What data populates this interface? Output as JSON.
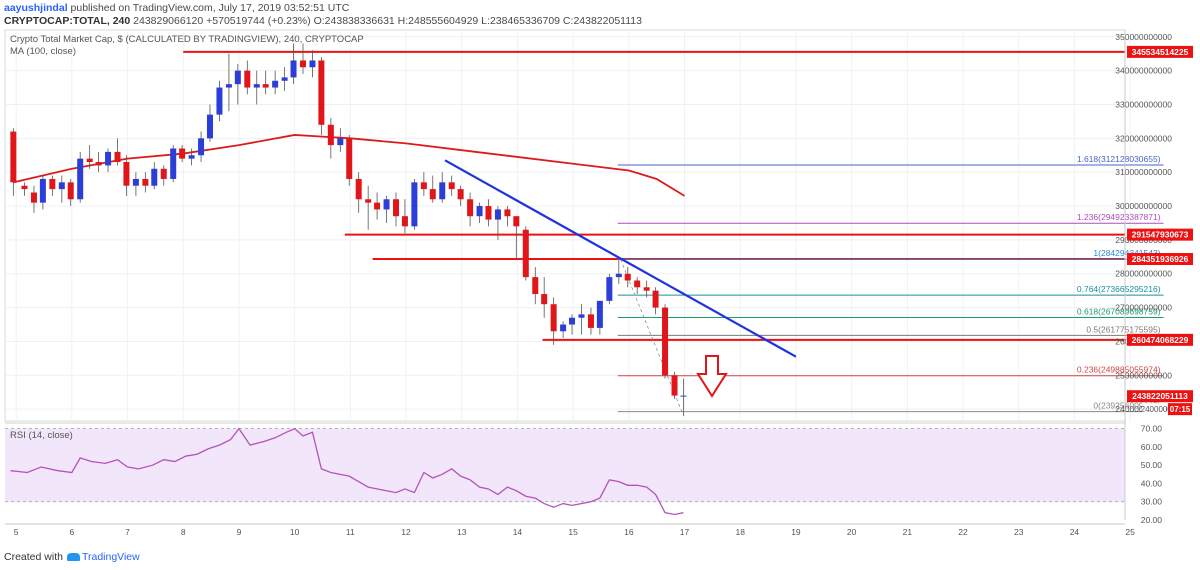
{
  "header": {
    "user": "aayushjindal",
    "published_text": "published on TradingView.com, July 17, 2019 03:52:51 UTC",
    "symbol_line": "CRYPTOCAP:TOTAL, 240",
    "price": "243829066120",
    "change": "+570519744 (+0.23%)",
    "ohlc": {
      "o": "243838336631",
      "h": "248555604929",
      "l": "238465336709",
      "c": "243822051113"
    }
  },
  "legend": {
    "main": "Crypto Total Market Cap, $ (CALCULATED BY TRADINGVIEW), 240, CRYPTOCAP",
    "ma": "MA (100, close)",
    "rsi": "RSI (14, close)"
  },
  "footer": {
    "created_with": "Created with",
    "brand": "TradingView"
  },
  "colors": {
    "up": "#2b3ed8",
    "down": "#e0161b",
    "ma": "#dd1b1b",
    "hline": "#ee1111",
    "trend": "#1d33e0",
    "rsi": "#b553bd",
    "rsi_band": "#f1e6fa",
    "arrow": "#e0161b"
  },
  "chart_data": [
    {
      "type": "candlestick",
      "title": "Crypto Total Market Cap, $ (CALCULATED BY TRADINGVIEW), 240, CRYPTOCAP",
      "x_ticks": [
        "5",
        "6",
        "7",
        "8",
        "9",
        "10",
        "11",
        "12",
        "13",
        "14",
        "15",
        "16",
        "17",
        "18",
        "19",
        "20",
        "21",
        "22",
        "23",
        "24",
        "25"
      ],
      "x_tick_days": [
        5,
        6,
        7,
        8,
        9,
        10,
        11,
        12,
        13,
        14,
        15,
        16,
        17,
        18,
        19,
        20,
        21,
        22,
        23,
        24,
        25
      ],
      "y_ticks": [
        "240000000000",
        "250000000000",
        "260000000000",
        "270000000000",
        "280000000000",
        "290000000000",
        "300000000000",
        "310000000000",
        "320000000000",
        "330000000000",
        "340000000000",
        "350000000000"
      ],
      "ylim": [
        236500000000,
        352000000000
      ],
      "candles": [
        {
          "t": 4.95,
          "o": 322,
          "h": 323,
          "l": 303,
          "c": 307
        },
        {
          "t": 5.15,
          "o": 306,
          "h": 307,
          "l": 303,
          "c": 305
        },
        {
          "t": 5.32,
          "o": 304,
          "h": 306,
          "l": 298,
          "c": 301
        },
        {
          "t": 5.48,
          "o": 301,
          "h": 309,
          "l": 299,
          "c": 308
        },
        {
          "t": 5.65,
          "o": 308,
          "h": 309,
          "l": 303,
          "c": 305
        },
        {
          "t": 5.82,
          "o": 305,
          "h": 309,
          "l": 301,
          "c": 307
        },
        {
          "t": 5.98,
          "o": 307,
          "h": 308,
          "l": 300,
          "c": 302
        },
        {
          "t": 6.15,
          "o": 302,
          "h": 316,
          "l": 301,
          "c": 314
        },
        {
          "t": 6.32,
          "o": 314,
          "h": 318,
          "l": 311,
          "c": 313
        },
        {
          "t": 6.48,
          "o": 313,
          "h": 316,
          "l": 310,
          "c": 312
        },
        {
          "t": 6.65,
          "o": 312,
          "h": 317,
          "l": 310,
          "c": 316
        },
        {
          "t": 6.82,
          "o": 316,
          "h": 320,
          "l": 312,
          "c": 313
        },
        {
          "t": 6.98,
          "o": 313,
          "h": 315,
          "l": 303,
          "c": 306
        },
        {
          "t": 7.15,
          "o": 306,
          "h": 310,
          "l": 303,
          "c": 308
        },
        {
          "t": 7.32,
          "o": 308,
          "h": 310,
          "l": 304,
          "c": 306
        },
        {
          "t": 7.48,
          "o": 306,
          "h": 313,
          "l": 305,
          "c": 311
        },
        {
          "t": 7.65,
          "o": 311,
          "h": 312,
          "l": 306,
          "c": 308
        },
        {
          "t": 7.82,
          "o": 308,
          "h": 318,
          "l": 307,
          "c": 317
        },
        {
          "t": 7.98,
          "o": 317,
          "h": 318,
          "l": 313,
          "c": 314
        },
        {
          "t": 8.15,
          "o": 314,
          "h": 317,
          "l": 312,
          "c": 315
        },
        {
          "t": 8.32,
          "o": 315,
          "h": 322,
          "l": 313,
          "c": 320
        },
        {
          "t": 8.48,
          "o": 320,
          "h": 330,
          "l": 319,
          "c": 327
        },
        {
          "t": 8.65,
          "o": 327,
          "h": 337,
          "l": 325,
          "c": 335
        },
        {
          "t": 8.82,
          "o": 335,
          "h": 345,
          "l": 328,
          "c": 336
        },
        {
          "t": 8.98,
          "o": 336,
          "h": 342,
          "l": 330,
          "c": 340
        },
        {
          "t": 9.15,
          "o": 340,
          "h": 343,
          "l": 333,
          "c": 335
        },
        {
          "t": 9.32,
          "o": 335,
          "h": 340,
          "l": 330,
          "c": 336
        },
        {
          "t": 9.48,
          "o": 336,
          "h": 340,
          "l": 333,
          "c": 335
        },
        {
          "t": 9.65,
          "o": 335,
          "h": 340,
          "l": 333,
          "c": 337
        },
        {
          "t": 9.82,
          "o": 337,
          "h": 341,
          "l": 334,
          "c": 338
        },
        {
          "t": 9.98,
          "o": 338,
          "h": 348,
          "l": 336,
          "c": 343
        },
        {
          "t": 10.15,
          "o": 343,
          "h": 348,
          "l": 339,
          "c": 341
        },
        {
          "t": 10.32,
          "o": 341,
          "h": 346,
          "l": 338,
          "c": 343
        },
        {
          "t": 10.48,
          "o": 343,
          "h": 344,
          "l": 321,
          "c": 324
        },
        {
          "t": 10.65,
          "o": 324,
          "h": 326,
          "l": 314,
          "c": 318
        },
        {
          "t": 10.82,
          "o": 318,
          "h": 323,
          "l": 316,
          "c": 320
        },
        {
          "t": 10.98,
          "o": 320,
          "h": 321,
          "l": 306,
          "c": 308
        },
        {
          "t": 11.15,
          "o": 308,
          "h": 310,
          "l": 298,
          "c": 302
        },
        {
          "t": 11.32,
          "o": 302,
          "h": 306,
          "l": 293,
          "c": 301
        },
        {
          "t": 11.48,
          "o": 301,
          "h": 304,
          "l": 296,
          "c": 299
        },
        {
          "t": 11.65,
          "o": 299,
          "h": 303,
          "l": 295,
          "c": 302
        },
        {
          "t": 11.82,
          "o": 302,
          "h": 304,
          "l": 294,
          "c": 297
        },
        {
          "t": 11.98,
          "o": 297,
          "h": 302,
          "l": 292,
          "c": 294
        },
        {
          "t": 12.15,
          "o": 294,
          "h": 308,
          "l": 293,
          "c": 307
        },
        {
          "t": 12.32,
          "o": 307,
          "h": 310,
          "l": 303,
          "c": 305
        },
        {
          "t": 12.48,
          "o": 305,
          "h": 309,
          "l": 301,
          "c": 302
        },
        {
          "t": 12.65,
          "o": 302,
          "h": 310,
          "l": 301,
          "c": 307
        },
        {
          "t": 12.82,
          "o": 307,
          "h": 309,
          "l": 303,
          "c": 305
        },
        {
          "t": 12.98,
          "o": 305,
          "h": 306,
          "l": 300,
          "c": 302
        },
        {
          "t": 13.15,
          "o": 302,
          "h": 304,
          "l": 294,
          "c": 297
        },
        {
          "t": 13.32,
          "o": 297,
          "h": 301,
          "l": 295,
          "c": 300
        },
        {
          "t": 13.48,
          "o": 300,
          "h": 302,
          "l": 294,
          "c": 296
        },
        {
          "t": 13.65,
          "o": 296,
          "h": 300,
          "l": 290,
          "c": 299
        },
        {
          "t": 13.82,
          "o": 299,
          "h": 300,
          "l": 294,
          "c": 297
        },
        {
          "t": 13.98,
          "o": 297,
          "h": 297,
          "l": 284,
          "c": 294
        },
        {
          "t": 14.15,
          "o": 293,
          "h": 294,
          "l": 278,
          "c": 279
        },
        {
          "t": 14.32,
          "o": 279,
          "h": 282,
          "l": 271,
          "c": 274
        },
        {
          "t": 14.48,
          "o": 274,
          "h": 279,
          "l": 267,
          "c": 271
        },
        {
          "t": 14.65,
          "o": 271,
          "h": 273,
          "l": 259,
          "c": 263
        },
        {
          "t": 14.82,
          "o": 263,
          "h": 266,
          "l": 261,
          "c": 265
        },
        {
          "t": 14.98,
          "o": 265,
          "h": 268,
          "l": 262,
          "c": 267
        },
        {
          "t": 15.15,
          "o": 267,
          "h": 271,
          "l": 262,
          "c": 268
        },
        {
          "t": 15.32,
          "o": 268,
          "h": 270,
          "l": 262,
          "c": 264
        },
        {
          "t": 15.48,
          "o": 264,
          "h": 270,
          "l": 262,
          "c": 272
        },
        {
          "t": 15.65,
          "o": 272,
          "h": 280,
          "l": 271,
          "c": 279
        },
        {
          "t": 15.82,
          "o": 279,
          "h": 285,
          "l": 277,
          "c": 280
        },
        {
          "t": 15.98,
          "o": 280,
          "h": 282,
          "l": 276,
          "c": 278
        },
        {
          "t": 16.15,
          "o": 278,
          "h": 279,
          "l": 274,
          "c": 276
        },
        {
          "t": 16.32,
          "o": 276,
          "h": 278,
          "l": 273,
          "c": 275
        },
        {
          "t": 16.48,
          "o": 275,
          "h": 276,
          "l": 268,
          "c": 270
        },
        {
          "t": 16.65,
          "o": 270,
          "h": 271,
          "l": 249,
          "c": 250
        },
        {
          "t": 16.82,
          "o": 250,
          "h": 251,
          "l": 243,
          "c": 244
        },
        {
          "t": 16.98,
          "o": 244,
          "h": 249,
          "l": 238,
          "c": 244
        }
      ],
      "ma100": [
        [
          4.95,
          307
        ],
        [
          6,
          311
        ],
        [
          7,
          314
        ],
        [
          8,
          315.5
        ],
        [
          9,
          318
        ],
        [
          10,
          321
        ],
        [
          10.5,
          320.5
        ],
        [
          11,
          320
        ],
        [
          12,
          318.5
        ],
        [
          13,
          316.5
        ],
        [
          14,
          314.5
        ],
        [
          15,
          312.5
        ],
        [
          16,
          310.5
        ],
        [
          16.5,
          308
        ],
        [
          17,
          303
        ]
      ],
      "horizontal_lines": [
        {
          "value": 345534514225,
          "from": 8.0,
          "label": "345534514225"
        },
        {
          "value": 291547930673,
          "from": 10.9,
          "label": "291547930673"
        },
        {
          "value": 284351936926,
          "from": 11.4,
          "label": "284351936926"
        },
        {
          "value": 260474068229,
          "from": 14.45,
          "label": "260474068229"
        }
      ],
      "fib_levels": [
        {
          "ratio": "1.618",
          "value": 312128030655,
          "label": "1.618(312128030655)",
          "color": "#4a63c9"
        },
        {
          "ratio": "1.236",
          "value": 294923387871,
          "label": "1.236(294923387871)",
          "color": "#b04ac0"
        },
        {
          "ratio": "1",
          "value": 284294341543,
          "label": "1(284294341543)",
          "color": "#2a8ad6"
        },
        {
          "ratio": "0.764",
          "value": 273665295216,
          "label": "0.764(273665295216)",
          "color": "#1a8fa0"
        },
        {
          "ratio": "0.618",
          "value": 267089698759,
          "label": "0.618(267089698759)",
          "color": "#1d9c74"
        },
        {
          "ratio": "0.5",
          "value": 261775175595,
          "label": "0.5(261775175595)",
          "color": "#7a7a7a"
        },
        {
          "ratio": "0.236",
          "value": 249885055974,
          "label": "0.236(249885055974)",
          "color": "#d04646"
        },
        {
          "ratio": "0",
          "value": 239256009647,
          "label": "0(239256009647)",
          "color": "#8a8a8a"
        }
      ],
      "fib_range": [
        15.8,
        25.6
      ],
      "trend_line": [
        [
          12.7,
          313.5
        ],
        [
          19.0,
          255.5
        ]
      ],
      "current_price": {
        "value": 243822051113,
        "label": "243822051113"
      },
      "countdown": {
        "price_label": "240000",
        "time": "07:15"
      }
    },
    {
      "type": "line",
      "title": "RSI (14, close)",
      "y_ticks": [
        "20.00",
        "30.00",
        "40.00",
        "50.00",
        "60.00",
        "70.00"
      ],
      "ylim": [
        20,
        72
      ],
      "band": [
        30,
        70
      ],
      "x": [
        4.9,
        5.2,
        5.45,
        5.75,
        6,
        6.15,
        6.35,
        6.6,
        6.82,
        7,
        7.2,
        7.45,
        7.65,
        7.85,
        8.05,
        8.25,
        8.45,
        8.65,
        8.85,
        9,
        9.2,
        9.45,
        9.65,
        9.85,
        10,
        10.15,
        10.32,
        10.48,
        10.65,
        10.82,
        10.98,
        11.15,
        11.32,
        11.65,
        11.82,
        11.98,
        12.15,
        12.32,
        12.48,
        12.65,
        12.82,
        12.98,
        13.15,
        13.32,
        13.48,
        13.65,
        13.82,
        13.98,
        14.15,
        14.32,
        14.48,
        14.65,
        14.82,
        14.98,
        15.15,
        15.32,
        15.48,
        15.65,
        15.82,
        15.98,
        16.15,
        16.32,
        16.48,
        16.65,
        16.82,
        16.98
      ],
      "values": [
        47,
        46,
        49,
        47,
        46,
        54,
        52,
        51,
        53,
        49,
        48,
        50,
        53,
        52,
        55,
        56,
        59,
        61,
        64,
        70,
        61,
        63,
        65,
        68,
        70,
        66,
        68,
        48,
        46,
        45,
        44,
        41,
        38,
        36,
        35,
        37,
        35,
        46,
        43,
        45,
        48,
        44,
        42,
        38,
        37,
        34,
        38,
        36,
        33,
        32,
        29,
        27,
        29,
        28,
        29,
        30,
        32,
        42,
        41,
        39,
        39,
        38,
        34,
        24,
        23,
        24
      ]
    }
  ]
}
